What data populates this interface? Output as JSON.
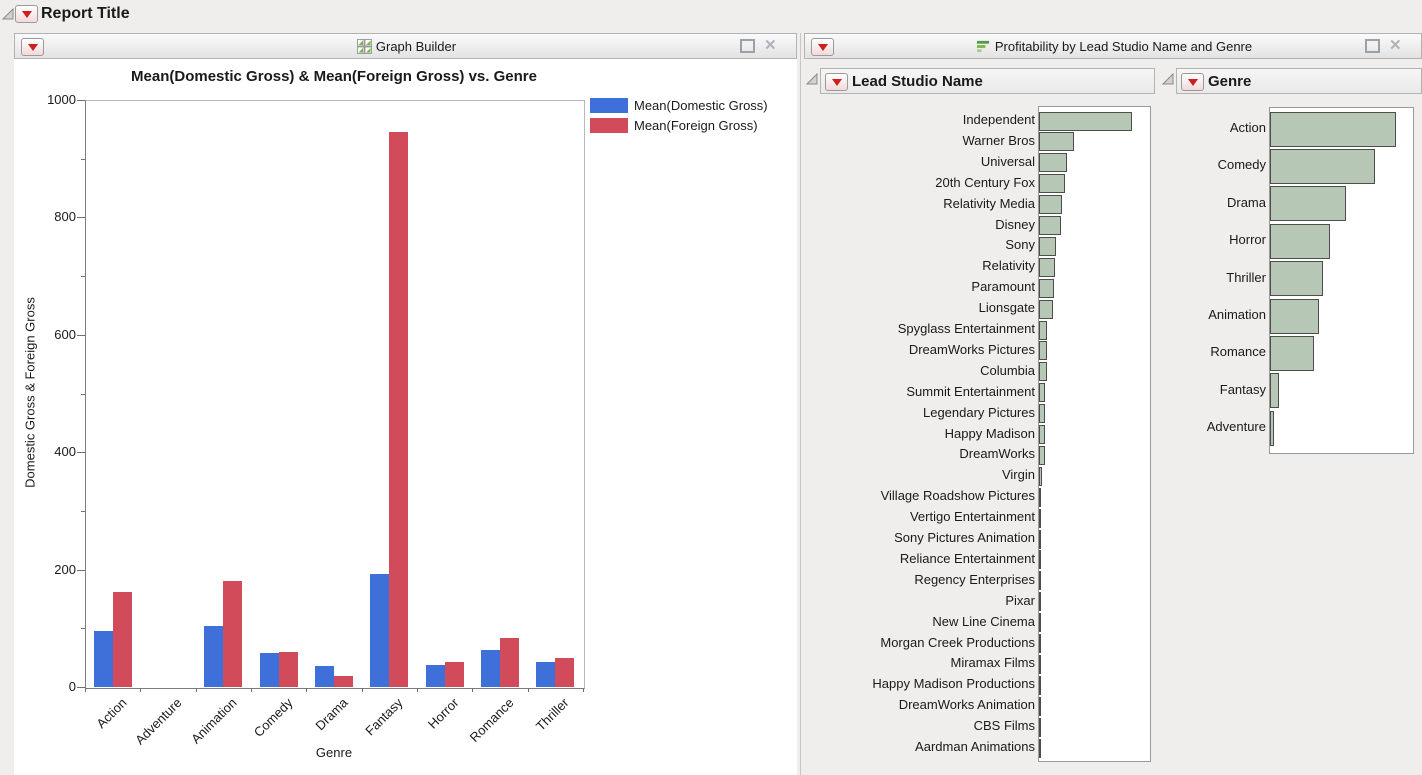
{
  "report": {
    "title": "Report Title"
  },
  "icons": {
    "close_glyph": "✕"
  },
  "left_panel": {
    "header": {
      "title": "Graph Builder",
      "icon": "graph-builder-grid-icon"
    }
  },
  "right_panel": {
    "header": {
      "title": "Profitability by Lead Studio Name and Genre",
      "icon": "horizontal-bars-icon"
    }
  },
  "chart_data": [
    {
      "type": "bar",
      "title": "Mean(Domestic Gross) & Mean(Foreign Gross) vs. Genre",
      "categories": [
        "Action",
        "Adventure",
        "Animation",
        "Comedy",
        "Drama",
        "Fantasy",
        "Horror",
        "Romance",
        "Thriller"
      ],
      "series": [
        {
          "name": "Mean(Domestic Gross)",
          "color": "#3f6fd8",
          "values": [
            95,
            0,
            104,
            58,
            36,
            192,
            37,
            63,
            42
          ]
        },
        {
          "name": "Mean(Foreign Gross)",
          "color": "#d14b5b",
          "values": [
            162,
            0,
            181,
            60,
            19,
            945,
            42,
            83,
            50
          ]
        }
      ],
      "xlabel": "Genre",
      "ylabel": "Domestic Gross & Foreign Gross",
      "ylim": [
        0,
        1000
      ],
      "yticks_major": [
        0,
        200,
        400,
        600,
        800,
        1000
      ],
      "ytick_minor_step": 100,
      "grid": false,
      "legend_position": "right"
    },
    {
      "type": "bar",
      "orientation": "horizontal",
      "title": "Lead Studio Name",
      "note": "unlabeled count axis; values are bar lengths in screen px",
      "categories": [
        "Independent",
        "Warner Bros",
        "Universal",
        "20th Century Fox",
        "Relativity Media",
        "Disney",
        "Sony",
        "Relativity",
        "Paramount",
        "Lionsgate",
        "Spyglass Entertainment",
        "DreamWorks Pictures",
        "Columbia",
        "Summit Entertainment",
        "Legendary Pictures",
        "Happy Madison",
        "DreamWorks",
        "Virgin",
        "Village Roadshow Pictures",
        "Vertigo Entertainment",
        "Sony Pictures Animation",
        "Reliance Entertainment",
        "Regency Enterprises",
        "Pixar",
        "New Line Cinema",
        "Morgan Creek Productions",
        "Miramax Films",
        "Happy Madison Productions",
        "DreamWorks Animation",
        "CBS Films",
        "Aardman Animations"
      ],
      "values": [
        93,
        35,
        28,
        26,
        23,
        22,
        17,
        16,
        15,
        14,
        8,
        8,
        8,
        6,
        6,
        6,
        6,
        3,
        2,
        2,
        2,
        2,
        2,
        2,
        2,
        1,
        1,
        1,
        1,
        1,
        1
      ],
      "bar_color": "#b7c7b6"
    },
    {
      "type": "bar",
      "orientation": "horizontal",
      "title": "Genre",
      "note": "unlabeled count axis; values are bar lengths in screen px",
      "categories": [
        "Action",
        "Comedy",
        "Drama",
        "Horror",
        "Thriller",
        "Animation",
        "Romance",
        "Fantasy",
        "Adventure"
      ],
      "values": [
        126,
        105,
        76,
        60,
        53,
        49,
        44,
        9,
        4
      ],
      "bar_color": "#b7c7b6"
    }
  ]
}
